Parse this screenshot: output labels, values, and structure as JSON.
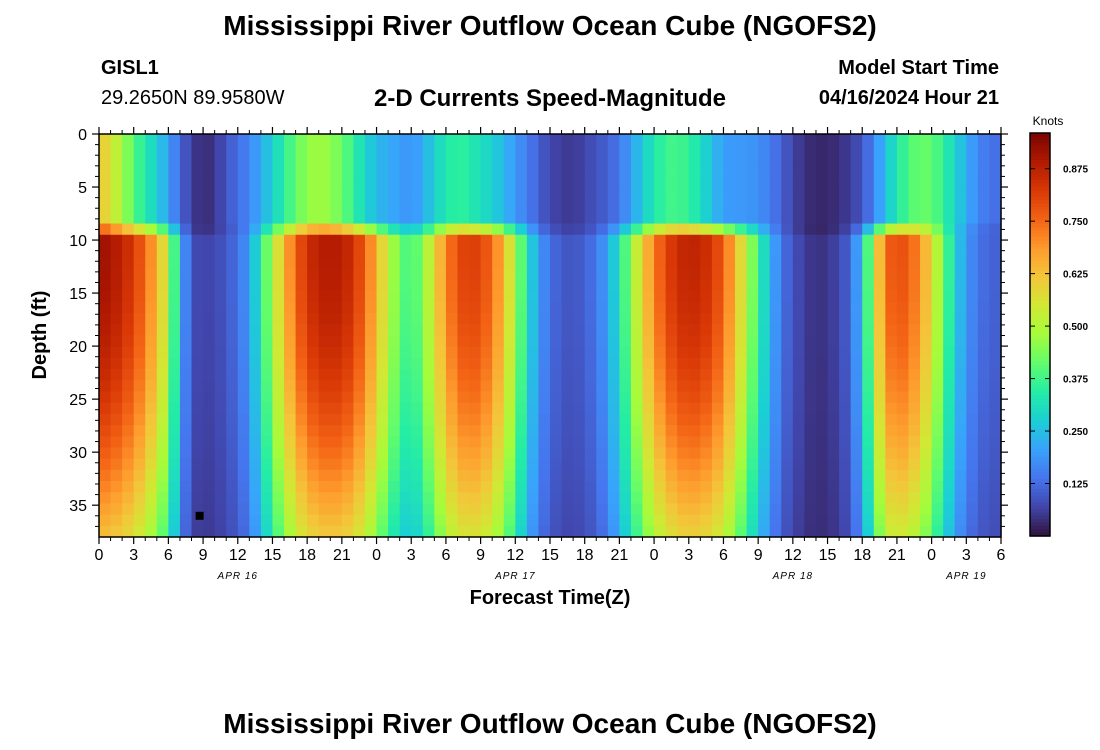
{
  "page": {
    "title": "Mississippi River Outflow Ocean Cube (NGOFS2)",
    "title_repeat": "Mississippi River Outflow Ocean Cube (NGOFS2)",
    "station": "GISL1",
    "coords": "29.2650N  89.9580W",
    "subtitle": "2-D Currents Speed-Magnitude",
    "model_start_label": "Model Start Time",
    "model_start_value": "04/16/2024 Hour 21"
  },
  "chart_data": {
    "type": "heatmap",
    "title": "2-D Currents Speed-Magnitude",
    "xlabel": "Forecast Time(Z)",
    "ylabel": "Depth (ft)",
    "x_tick_labels": [
      "0",
      "3",
      "6",
      "9",
      "12",
      "15",
      "18",
      "21",
      "0",
      "3",
      "6",
      "9",
      "12",
      "15",
      "18",
      "21",
      "0",
      "3",
      "6",
      "9",
      "12",
      "15",
      "18",
      "21",
      "0",
      "3",
      "6"
    ],
    "y_tick_labels": [
      "0",
      "5",
      "10",
      "15",
      "20",
      "25",
      "30",
      "35"
    ],
    "y_range_ft": [
      0,
      38
    ],
    "date_labels": [
      {
        "text": "APR 16",
        "hour_index": 12
      },
      {
        "text": "APR 17",
        "hour_index": 36
      },
      {
        "text": "APR 18",
        "hour_index": 60
      },
      {
        "text": "APR 19",
        "hour_index": 75
      }
    ],
    "x_range_hours_index": [
      0,
      78
    ],
    "colorbar": {
      "title": "Knots",
      "tick_labels": [
        "0.125",
        "0.250",
        "0.375",
        "0.500",
        "0.625",
        "0.750",
        "0.875"
      ],
      "range": [
        0.0,
        0.96
      ],
      "colors": [
        "#30123b",
        "#4145ab",
        "#4675ed",
        "#39a2fc",
        "#1bcfd4",
        "#24eca6",
        "#61fc6c",
        "#a4fc3b",
        "#d1e834",
        "#f3c63a",
        "#fe9b2d",
        "#f36315",
        "#d93806",
        "#b11901",
        "#7a0402"
      ]
    },
    "surface_layer": {
      "depth_ft": [
        0,
        8
      ],
      "speed_knots": [
        0.62,
        0.56,
        0.48,
        0.4,
        0.33,
        0.28,
        0.2,
        0.12,
        0.06,
        0.03,
        0.05,
        0.09,
        0.13,
        0.16,
        0.22,
        0.28,
        0.35,
        0.41,
        0.46,
        0.48,
        0.46,
        0.42,
        0.36,
        0.29,
        0.24,
        0.22,
        0.2,
        0.18,
        0.22,
        0.28,
        0.33,
        0.36,
        0.34,
        0.31,
        0.28,
        0.24,
        0.19,
        0.15,
        0.11,
        0.07,
        0.06,
        0.05,
        0.07,
        0.09,
        0.11,
        0.14,
        0.2,
        0.27,
        0.33,
        0.37,
        0.38,
        0.36,
        0.31,
        0.25,
        0.2,
        0.19,
        0.19,
        0.18,
        0.15,
        0.11,
        0.07,
        0.04,
        0.03,
        0.03,
        0.04,
        0.06,
        0.09,
        0.16,
        0.25,
        0.33,
        0.39,
        0.42,
        0.41,
        0.36,
        0.29,
        0.22,
        0.17,
        0.13
      ]
    },
    "subsurface_layer": {
      "depth_ft": [
        9,
        38
      ],
      "speed_knots": [
        0.9,
        0.88,
        0.85,
        0.8,
        0.73,
        0.63,
        0.5,
        0.22,
        0.06,
        0.05,
        0.05,
        0.08,
        0.11,
        0.18,
        0.32,
        0.48,
        0.62,
        0.74,
        0.82,
        0.86,
        0.87,
        0.86,
        0.82,
        0.74,
        0.63,
        0.5,
        0.4,
        0.35,
        0.43,
        0.56,
        0.69,
        0.77,
        0.8,
        0.78,
        0.73,
        0.62,
        0.47,
        0.3,
        0.18,
        0.11,
        0.08,
        0.07,
        0.09,
        0.12,
        0.19,
        0.3,
        0.44,
        0.58,
        0.7,
        0.78,
        0.83,
        0.85,
        0.84,
        0.81,
        0.74,
        0.63,
        0.49,
        0.35,
        0.22,
        0.12,
        0.07,
        0.04,
        0.02,
        0.03,
        0.05,
        0.1,
        0.24,
        0.5,
        0.73,
        0.77,
        0.75,
        0.68,
        0.56,
        0.41,
        0.27,
        0.17,
        0.12,
        0.09
      ]
    },
    "marker": {
      "hour_index": 8.7,
      "depth_ft": 36
    }
  }
}
